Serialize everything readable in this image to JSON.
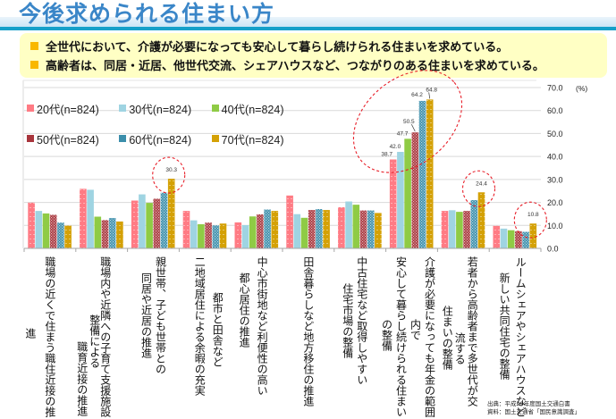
{
  "header": {
    "title": "今後求められる住まい方"
  },
  "summary": {
    "bullets": [
      "全世代において、介護が必要になっても安心して暮らし続けられる住まいを求めている。",
      "高齢者は、同居・近居、他世代交流、シェアハウスなど、つながりのある住まいを求めている。"
    ]
  },
  "chart_data": {
    "type": "bar",
    "title": "",
    "xlabel": "",
    "ylabel": "",
    "unit_label": "(%)",
    "ylim": [
      0,
      70
    ],
    "yticks": [
      "0.0",
      "10.0",
      "20.0",
      "30.0",
      "40.0",
      "50.0",
      "60.0",
      "70.0"
    ],
    "grid": true,
    "legend_position": "top-left",
    "categories": [
      [
        "職場の近くで住まう職住近接の推",
        "進"
      ],
      [
        "職場内や近隣への子育て支援施設",
        "整備による",
        "職育近接の推進"
      ],
      [
        "親世帯、子ども世帯との",
        "同居や近居の推進"
      ],
      [
        "都市と田舎など",
        "二地域居住による余暇の充実"
      ],
      [
        "中心市街地など利便性の高い",
        "都心居住の推進"
      ],
      [
        "田舎暮らしなど地方移住の推進"
      ],
      [
        "中古住宅など取得しやすい",
        "住宅市場の整備"
      ],
      [
        "介護が必要になっても年金の範囲",
        "内で",
        "安心して暮らし続けられる住まい",
        "の整備"
      ],
      [
        "若者から高齢者まで多世代が交",
        "流する",
        "住まいの整備"
      ],
      [
        "ルームシェアやシェアハウスなど",
        "新しい共同住宅の整備"
      ]
    ],
    "series": [
      {
        "name": "20代(n=824)",
        "color": "#ff7b84",
        "pattern": "dots",
        "values": [
          19.9,
          25.9,
          20.8,
          16.3,
          11.3,
          23.0,
          17.9,
          38.7,
          16.3,
          9.8
        ]
      },
      {
        "name": "30代(n=824)",
        "color": "#9fd4e2",
        "pattern": "solid",
        "values": [
          16.3,
          25.5,
          23.5,
          12.2,
          10.1,
          14.9,
          20.4,
          42.0,
          16.6,
          8.6
        ]
      },
      {
        "name": "40代(n=824)",
        "color": "#8fcb45",
        "pattern": "solid",
        "values": [
          15.2,
          13.8,
          19.8,
          10.5,
          13.9,
          13.3,
          19.0,
          47.7,
          15.9,
          7.9
        ]
      },
      {
        "name": "50代(n=824)",
        "color": "#a8353c",
        "pattern": "checker",
        "values": [
          14.6,
          12.3,
          21.6,
          11.2,
          14.8,
          16.7,
          16.5,
          50.5,
          16.3,
          7.5
        ]
      },
      {
        "name": "60代(n=824)",
        "color": "#3b8eab",
        "pattern": "checker",
        "values": [
          11.2,
          13.2,
          24.2,
          10.0,
          16.9,
          17.1,
          16.5,
          64.2,
          21.0,
          7.2
        ]
      },
      {
        "name": "70代(n=824)",
        "color": "#d4a106",
        "pattern": "dots",
        "values": [
          9.9,
          11.7,
          30.3,
          10.8,
          16.3,
          16.7,
          15.4,
          64.8,
          24.4,
          10.8
        ]
      }
    ],
    "data_labels": [
      {
        "category": 2,
        "series": 5,
        "text": "30.3"
      },
      {
        "category": 7,
        "series": 0,
        "text": "38.7"
      },
      {
        "category": 7,
        "series": 1,
        "text": "42.0"
      },
      {
        "category": 7,
        "series": 2,
        "text": "47.7"
      },
      {
        "category": 7,
        "series": 3,
        "text": "50.5"
      },
      {
        "category": 7,
        "series": 4,
        "text": "64.2"
      },
      {
        "category": 7,
        "series": 5,
        "text": "64.8"
      },
      {
        "category": 8,
        "series": 5,
        "text": "24.4"
      },
      {
        "category": 9,
        "series": 5,
        "text": "10.8"
      }
    ],
    "highlights": [
      {
        "category": 2,
        "series": 5
      },
      {
        "category": 7,
        "series": "all"
      },
      {
        "category": 8,
        "series": 5
      },
      {
        "category": 9,
        "series": 5
      }
    ]
  },
  "source": {
    "line1": "出典：平成29年度国土交通白書",
    "line2": "資料：国土交通省「国民意識調査」"
  }
}
